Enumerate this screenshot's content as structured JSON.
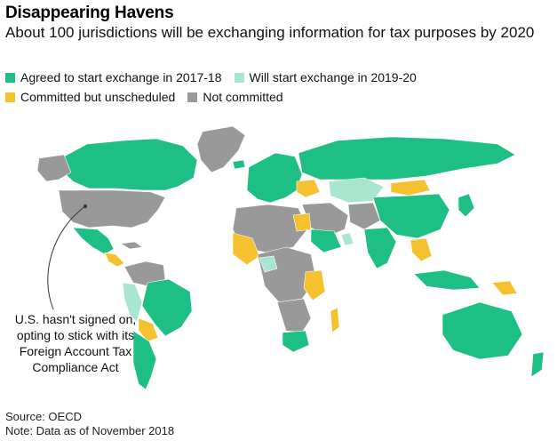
{
  "header": {
    "title": "Disappearing Havens",
    "subtitle": "About 100 jurisdictions will be exchanging information for tax purposes by 2020"
  },
  "legend": {
    "items": [
      {
        "label": "Agreed to start exchange in 2017-18",
        "color": "#1dbf85"
      },
      {
        "label": "Will start exchange in 2019-20",
        "color": "#a8e6cf"
      },
      {
        "label": "Committed but unscheduled",
        "color": "#f5c12e"
      },
      {
        "label": "Not committed",
        "color": "#999999"
      }
    ]
  },
  "annotation": {
    "text": "U.S. hasn't signed on, opting to stick with its Foreign Account Tax Compliance Act"
  },
  "footer": {
    "source": "Source: OECD",
    "note": "Note: Data as of November 2018"
  }
}
